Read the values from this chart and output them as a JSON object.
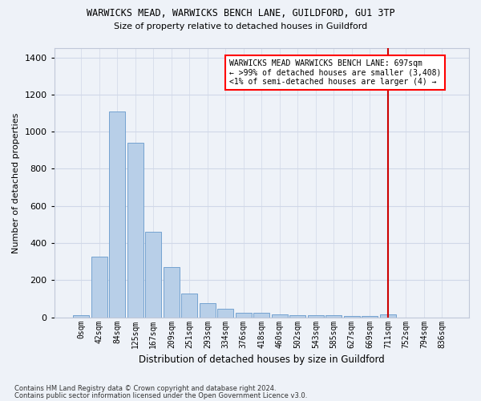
{
  "title1": "WARWICKS MEAD, WARWICKS BENCH LANE, GUILDFORD, GU1 3TP",
  "title2": "Size of property relative to detached houses in Guildford",
  "xlabel": "Distribution of detached houses by size in Guildford",
  "ylabel": "Number of detached properties",
  "footer1": "Contains HM Land Registry data © Crown copyright and database right 2024.",
  "footer2": "Contains public sector information licensed under the Open Government Licence v3.0.",
  "bar_labels": [
    "0sqm",
    "42sqm",
    "84sqm",
    "125sqm",
    "167sqm",
    "209sqm",
    "251sqm",
    "293sqm",
    "334sqm",
    "376sqm",
    "418sqm",
    "460sqm",
    "502sqm",
    "543sqm",
    "585sqm",
    "627sqm",
    "669sqm",
    "711sqm",
    "752sqm",
    "794sqm",
    "836sqm"
  ],
  "bar_values": [
    10,
    325,
    1110,
    940,
    460,
    270,
    130,
    75,
    45,
    25,
    25,
    15,
    10,
    10,
    10,
    5,
    5,
    15,
    0,
    0,
    0
  ],
  "bar_color": "#b8cfe8",
  "bar_edge_color": "#6699cc",
  "highlight_index": 17,
  "highlight_color": "#cc0000",
  "highlight_label": "WARWICKS MEAD WARWICKS BENCH LANE: 697sqm",
  "highlight_line1": "← >99% of detached houses are smaller (3,408)",
  "highlight_line2": "<1% of semi-detached houses are larger (4) →",
  "ylim": [
    0,
    1450
  ],
  "yticks": [
    0,
    200,
    400,
    600,
    800,
    1000,
    1200,
    1400
  ],
  "bg_color": "#eef2f8",
  "plot_bg": "#eef2f8",
  "grid_color": "#d0d8e8"
}
